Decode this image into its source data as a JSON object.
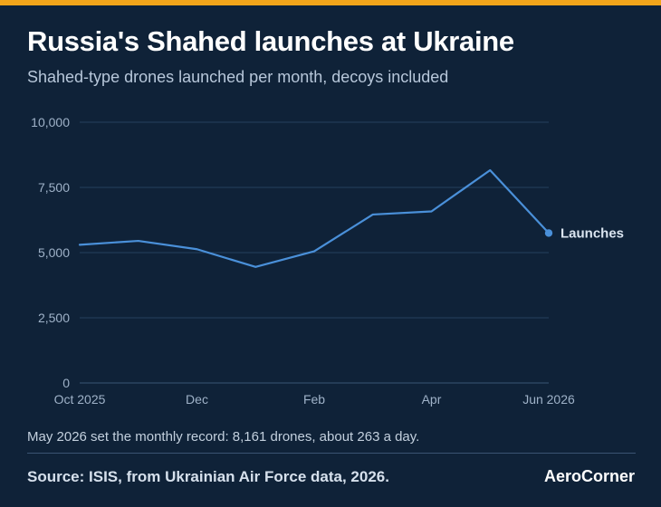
{
  "header": {
    "title": "Russia's Shahed launches at Ukraine",
    "subtitle": "Shahed-type drones launched per month, decoys included"
  },
  "footer": {
    "note": "May 2026 set the monthly record: 8,161 drones, about 263 a day.",
    "source": "Source: ISIS, from Ukrainian Air Force data, 2026.",
    "brand": "AeroCorner"
  },
  "colors": {
    "background": "#0f2238",
    "accent_bar": "#f2a51a",
    "line": "#4a90d9",
    "grid": "#26405e"
  },
  "chart_data": {
    "type": "line",
    "title": "Russia's Shahed launches at Ukraine",
    "subtitle": "Shahed-type drones launched per month, decoys included",
    "xlabel": "",
    "ylabel": "",
    "x": [
      "2025-10",
      "2025-11",
      "2025-12",
      "2026-01",
      "2026-02",
      "2026-03",
      "2026-04",
      "2026-05",
      "2026-06"
    ],
    "x_tick_labels": [
      {
        "x": "2025-10",
        "label": "Oct 2025"
      },
      {
        "x": "2025-12",
        "label": "Dec"
      },
      {
        "x": "2026-02",
        "label": "Feb"
      },
      {
        "x": "2026-04",
        "label": "Apr"
      },
      {
        "x": "2026-06",
        "label": "Jun 2026"
      }
    ],
    "y_ticks": [
      0,
      2500,
      5000,
      7500,
      10000
    ],
    "y_tick_labels": [
      "0",
      "2,500",
      "5,000",
      "7,500",
      "10,000"
    ],
    "ylim": [
      0,
      10000
    ],
    "grid": true,
    "series": [
      {
        "name": "Launches",
        "values": [
          5300,
          5450,
          5130,
          4450,
          5050,
          6460,
          6580,
          8161,
          5750
        ]
      }
    ]
  }
}
